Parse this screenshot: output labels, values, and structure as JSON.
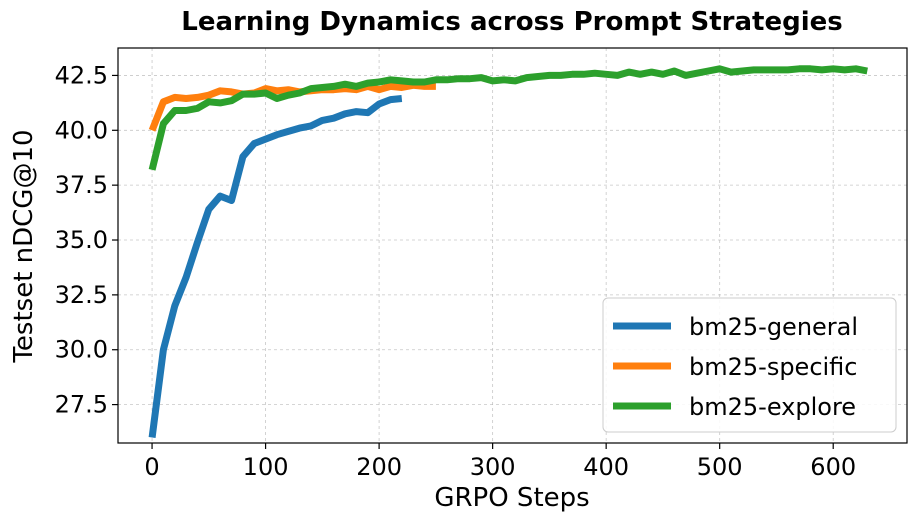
{
  "chart_data": {
    "type": "line",
    "title": "Learning Dynamics across Prompt Strategies",
    "xlabel": "GRPO Steps",
    "ylabel": "Testset nDCG@10",
    "xlim": [
      -30,
      665
    ],
    "ylim": [
      25.75,
      43.75
    ],
    "xticks": [
      0,
      100,
      200,
      300,
      400,
      500,
      600
    ],
    "yticks": [
      27.5,
      30.0,
      32.5,
      35.0,
      37.5,
      40.0,
      42.5
    ],
    "xtick_labels": [
      "0",
      "100",
      "200",
      "300",
      "400",
      "500",
      "600"
    ],
    "ytick_labels": [
      "27.5",
      "30.0",
      "32.5",
      "35.0",
      "37.5",
      "40.0",
      "42.5"
    ],
    "grid": true,
    "legend_position": "lower-right",
    "series": [
      {
        "name": "bm25-general",
        "color": "#1f77b4",
        "x": [
          0,
          10,
          20,
          30,
          40,
          50,
          60,
          70,
          80,
          90,
          100,
          110,
          120,
          130,
          140,
          150,
          160,
          170,
          180,
          190,
          200,
          210,
          220
        ],
        "y": [
          26.0,
          30.0,
          32.0,
          33.3,
          34.9,
          36.4,
          37.0,
          36.8,
          38.8,
          39.4,
          39.6,
          39.8,
          39.95,
          40.1,
          40.2,
          40.45,
          40.55,
          40.75,
          40.85,
          40.8,
          41.2,
          41.4,
          41.45
        ]
      },
      {
        "name": "bm25-specific",
        "color": "#ff7f0e",
        "x": [
          0,
          10,
          20,
          30,
          40,
          50,
          60,
          70,
          80,
          90,
          100,
          110,
          120,
          130,
          140,
          150,
          160,
          170,
          180,
          190,
          200,
          210,
          220,
          230,
          240,
          250
        ],
        "y": [
          40.0,
          41.3,
          41.5,
          41.45,
          41.5,
          41.6,
          41.8,
          41.75,
          41.65,
          41.7,
          41.9,
          41.8,
          41.85,
          41.75,
          41.8,
          41.85,
          41.85,
          41.9,
          41.85,
          42.0,
          41.85,
          42.0,
          41.95,
          42.05,
          42.0,
          42.0
        ]
      },
      {
        "name": "bm25-explore",
        "color": "#2ca02c",
        "x": [
          0,
          10,
          20,
          30,
          40,
          50,
          60,
          70,
          80,
          90,
          100,
          110,
          120,
          130,
          140,
          150,
          160,
          170,
          180,
          190,
          200,
          210,
          220,
          230,
          240,
          250,
          260,
          270,
          280,
          290,
          300,
          310,
          320,
          330,
          340,
          350,
          360,
          370,
          380,
          390,
          400,
          410,
          420,
          430,
          440,
          450,
          460,
          470,
          480,
          490,
          500,
          510,
          520,
          530,
          540,
          550,
          560,
          570,
          580,
          590,
          600,
          610,
          620,
          630
        ],
        "y": [
          38.2,
          40.3,
          40.9,
          40.9,
          41.0,
          41.3,
          41.25,
          41.35,
          41.65,
          41.65,
          41.7,
          41.45,
          41.6,
          41.7,
          41.9,
          41.95,
          42.0,
          42.1,
          42.0,
          42.15,
          42.2,
          42.3,
          42.25,
          42.2,
          42.2,
          42.3,
          42.3,
          42.35,
          42.35,
          42.4,
          42.25,
          42.3,
          42.25,
          42.4,
          42.45,
          42.5,
          42.5,
          42.55,
          42.55,
          42.6,
          42.55,
          42.5,
          42.65,
          42.55,
          42.65,
          42.55,
          42.7,
          42.5,
          42.6,
          42.7,
          42.8,
          42.65,
          42.7,
          42.75,
          42.75,
          42.75,
          42.75,
          42.8,
          42.8,
          42.75,
          42.8,
          42.75,
          42.8,
          42.7
        ]
      }
    ]
  }
}
